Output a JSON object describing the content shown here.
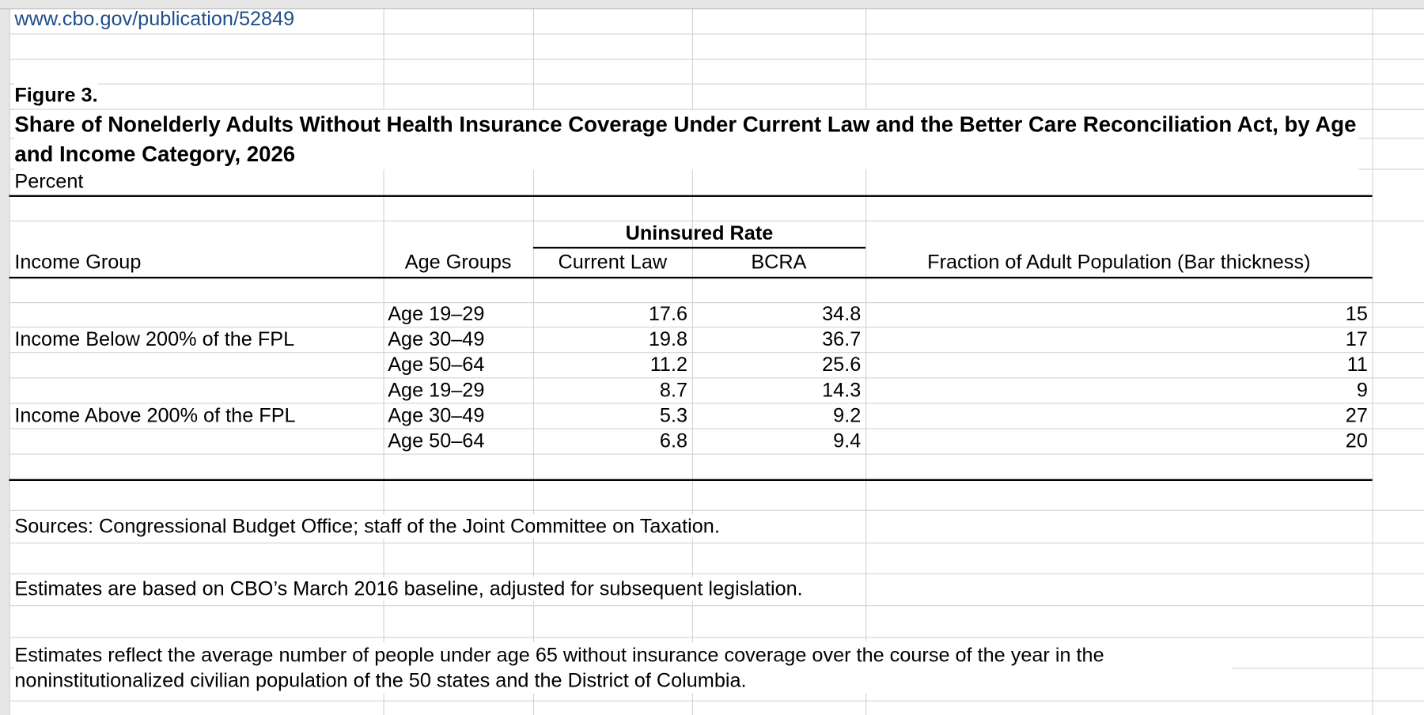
{
  "link": "www.cbo.gov/publication/52849",
  "figure": {
    "label": "Figure 3.",
    "title": "Share of Nonelderly Adults Without Health Insurance Coverage Under Current Law and the Better Care Reconciliation Act, by Age and Income Category, 2026",
    "unit": "Percent"
  },
  "table": {
    "group_header": "Uninsured Rate",
    "headers": [
      "Income Group",
      "Age Groups",
      "Current Law",
      "BCRA",
      "Fraction of Adult Population (Bar thickness)"
    ],
    "groups": [
      {
        "name": "Income  Below 200% of the FPL",
        "rows": [
          {
            "age": "Age 19–29",
            "current_law": 17.6,
            "bcra": 34.8,
            "fraction": 15
          },
          {
            "age": "Age 30–49",
            "current_law": 19.8,
            "bcra": 36.7,
            "fraction": 17
          },
          {
            "age": "Age 50–64",
            "current_law": 11.2,
            "bcra": 25.6,
            "fraction": 11
          }
        ]
      },
      {
        "name": "Income  Above 200% of the FPL",
        "rows": [
          {
            "age": "Age 19–29",
            "current_law": 8.7,
            "bcra": 14.3,
            "fraction": 9
          },
          {
            "age": "Age 30–49",
            "current_law": 5.3,
            "bcra": 9.2,
            "fraction": 27
          },
          {
            "age": "Age 50–64",
            "current_law": 6.8,
            "bcra": 9.4,
            "fraction": 20
          }
        ]
      }
    ]
  },
  "notes": [
    "Sources: Congressional Budget Office; staff of the Joint Committee on Taxation.",
    "Estimates are based on CBO’s March 2016 baseline, adjusted for subsequent legislation.",
    "Estimates reflect the average number of people under age 65 without insurance coverage over the course of the year in the noninstitutionalized civilian population of the 50 states and the District of Columbia."
  ]
}
